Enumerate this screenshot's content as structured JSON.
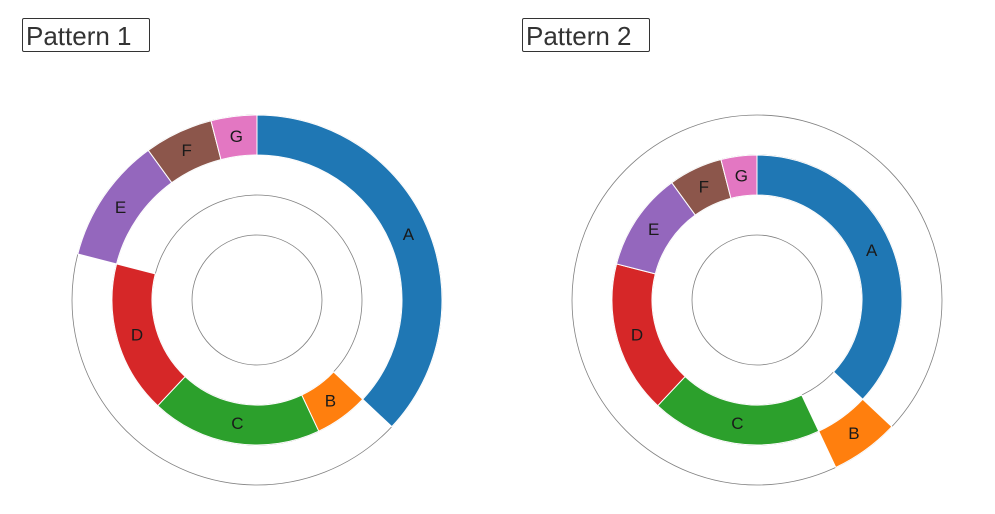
{
  "chart_data": [
    {
      "type": "pie",
      "title": "Pattern 1",
      "slices": [
        {
          "label": "A",
          "value": 37,
          "ring": 2,
          "color": "#1f77b4"
        },
        {
          "label": "B",
          "value": 6,
          "ring": 1,
          "color": "#ff7f0e"
        },
        {
          "label": "C",
          "value": 19,
          "ring": 1,
          "color": "#2ca02c"
        },
        {
          "label": "D",
          "value": 17,
          "ring": 1,
          "color": "#d62728"
        },
        {
          "label": "E",
          "value": 11,
          "ring": 2,
          "color": "#9467bd"
        },
        {
          "label": "F",
          "value": 6,
          "ring": 2,
          "color": "#8c564b"
        },
        {
          "label": "G",
          "value": 4,
          "ring": 2,
          "color": "#e377c2"
        }
      ]
    },
    {
      "type": "pie",
      "title": "Pattern 2",
      "slices": [
        {
          "label": "A",
          "value": 37,
          "ring": 1,
          "color": "#1f77b4"
        },
        {
          "label": "B",
          "value": 6,
          "ring": 2,
          "color": "#ff7f0e"
        },
        {
          "label": "C",
          "value": 19,
          "ring": 1,
          "color": "#2ca02c"
        },
        {
          "label": "D",
          "value": 17,
          "ring": 1,
          "color": "#d62728"
        },
        {
          "label": "E",
          "value": 11,
          "ring": 1,
          "color": "#9467bd"
        },
        {
          "label": "F",
          "value": 6,
          "ring": 1,
          "color": "#8c564b"
        },
        {
          "label": "G",
          "value": 4,
          "ring": 1,
          "color": "#e377c2"
        }
      ]
    }
  ]
}
